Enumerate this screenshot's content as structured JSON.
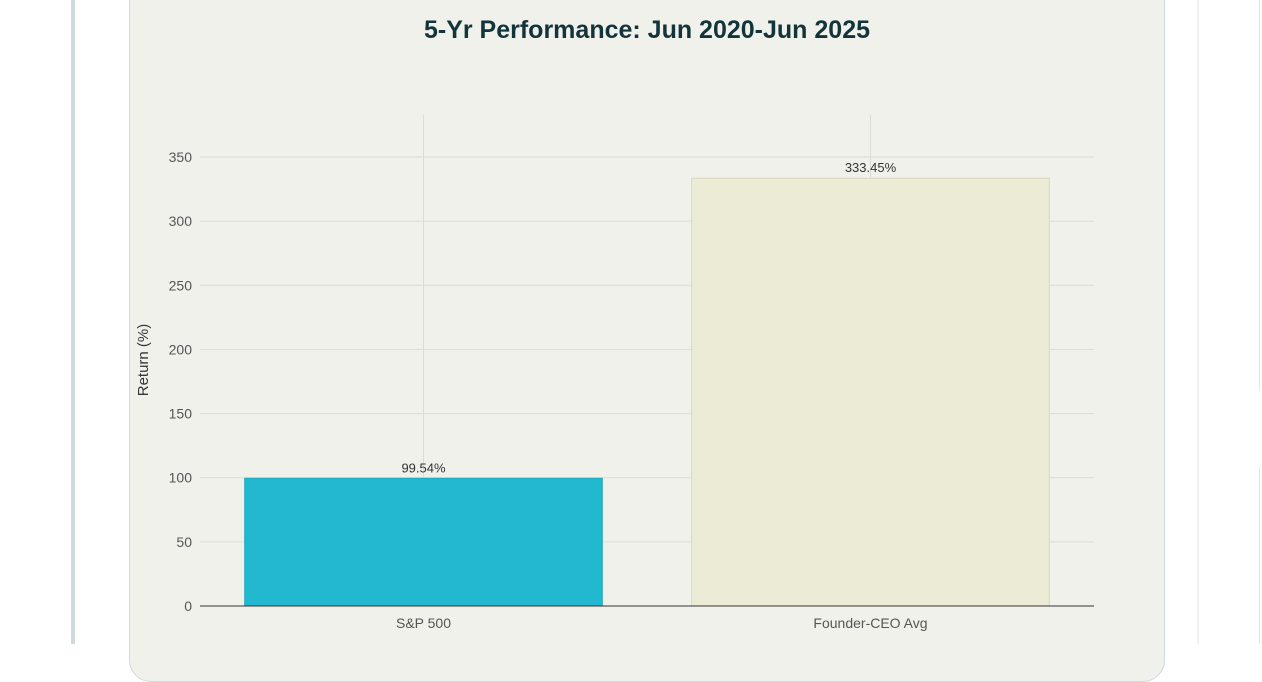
{
  "chart_data": {
    "type": "bar",
    "title": "5-Yr Performance: Jun 2020-Jun 2025",
    "xlabel": "",
    "ylabel": "Return (%)",
    "categories": [
      "S&P 500",
      "Founder-CEO Avg"
    ],
    "values": [
      99.54,
      333.45
    ],
    "data_labels": [
      "99.54%",
      "333.45%"
    ],
    "colors": [
      "#22b8cf",
      "#ebebd6"
    ],
    "ylim": [
      0,
      350
    ],
    "yticks": [
      "0",
      "50",
      "100",
      "150",
      "200",
      "250",
      "300",
      "350"
    ],
    "grid": true,
    "legend": "none"
  }
}
